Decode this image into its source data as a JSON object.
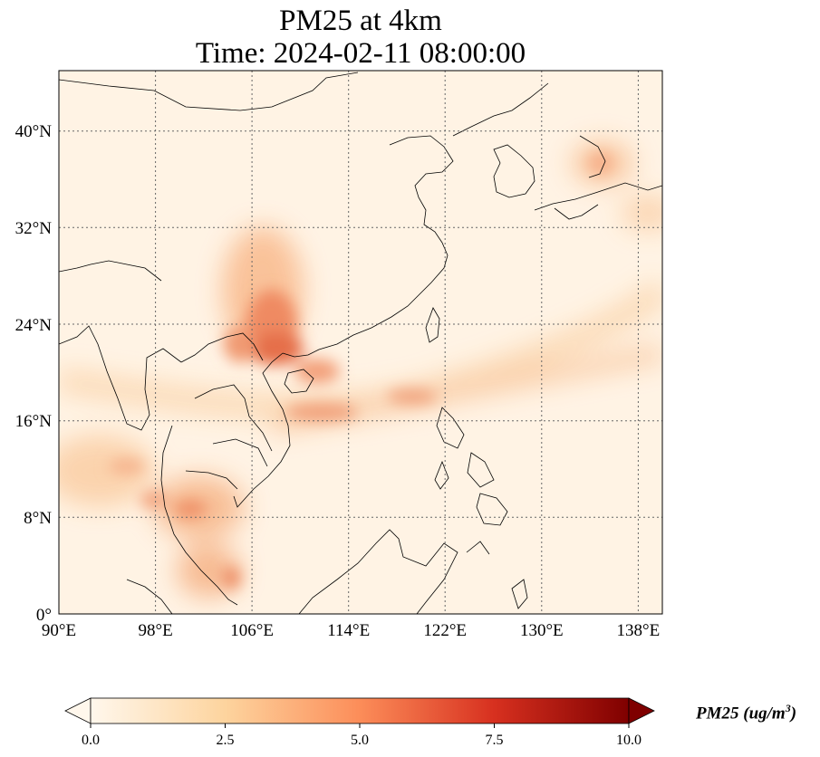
{
  "title": {
    "line1": "PM25 at 4km",
    "line2": "Time: 2024-02-11 08:00:00"
  },
  "map": {
    "lon_range": [
      90,
      140
    ],
    "lat_range": [
      0,
      45
    ],
    "lon_ticks": [
      "90°E",
      "98°E",
      "106°E",
      "114°E",
      "122°E",
      "130°E",
      "138°E"
    ],
    "lat_ticks": [
      "0°",
      "8°N",
      "16°N",
      "24°N",
      "32°N",
      "40°N"
    ],
    "gridlines": "dotted",
    "field": "PM25",
    "hotspots": [
      {
        "region": "South China / Guangxi",
        "level": 6.0
      },
      {
        "region": "Northern Vietnam / Gulf of Tonkin",
        "level": 5.5
      },
      {
        "region": "South China Sea plume",
        "level": 4.5
      },
      {
        "region": "Bay of Bengal coast / Myanmar",
        "level": 3.0
      },
      {
        "region": "Gulf of Thailand",
        "level": 3.5
      },
      {
        "region": "Malay Peninsula",
        "level": 3.5
      },
      {
        "region": "Sea of Japan",
        "level": 2.5
      }
    ]
  },
  "colorbar": {
    "colormap": "OrRd",
    "min": 0.0,
    "max": 10.0,
    "ticks": [
      "0.0",
      "2.5",
      "5.0",
      "7.5",
      "10.0"
    ],
    "extend": "both",
    "colors": [
      "#fff7ec",
      "#fdd49e",
      "#fc8d59",
      "#d7301f",
      "#7f0000"
    ]
  },
  "units": {
    "name": "PM25 (ug/m",
    "power": "3",
    "close": ")"
  }
}
